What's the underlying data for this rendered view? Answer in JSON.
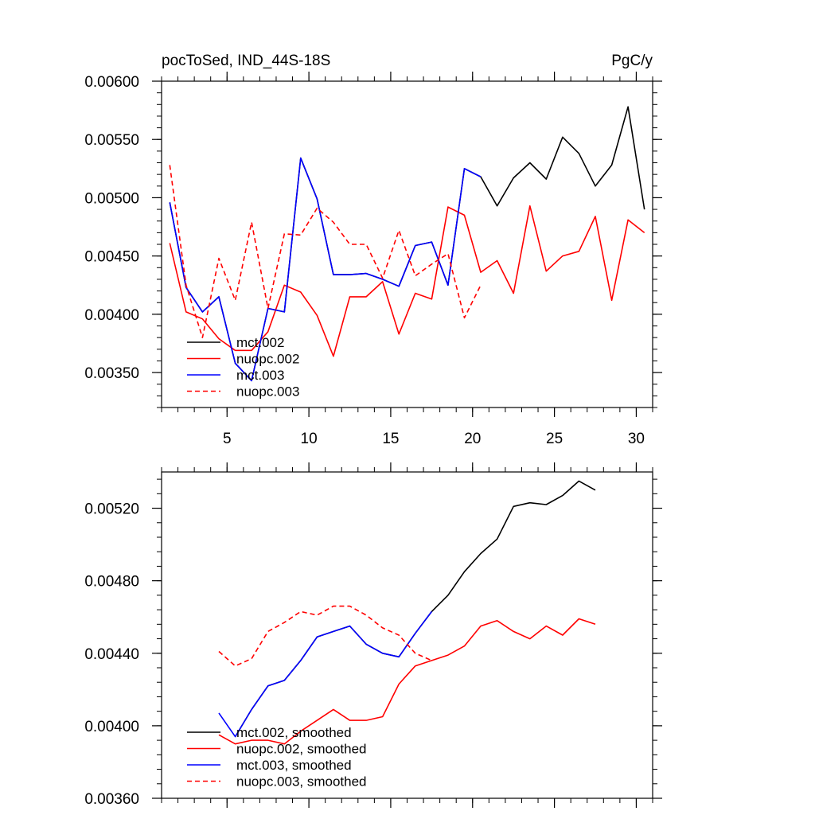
{
  "chart_data": [
    {
      "type": "line",
      "title_left": "pocToSed, IND_44S-18S",
      "title_right": "PgC/y",
      "xlim": [
        1,
        31
      ],
      "ylim": [
        0.0032,
        0.006
      ],
      "xticks": [
        5,
        10,
        15,
        20,
        25,
        30
      ],
      "xtick_labels": [
        "5",
        "10",
        "15",
        "20",
        "25",
        "30"
      ],
      "yticks": [
        0.0035,
        0.004,
        0.0045,
        0.005,
        0.0055,
        0.006
      ],
      "ytick_labels": [
        "0.00350",
        "0.00400",
        "0.00450",
        "0.00500",
        "0.00550",
        "0.00600"
      ],
      "series": [
        {
          "name": "mct.002",
          "color": "#000000",
          "dash": false,
          "x": [
            1.5,
            2.5,
            3.5,
            4.5,
            5.5,
            6.5,
            7.5,
            8.5,
            9.5,
            10.5,
            11.5,
            12.5,
            13.5,
            14.5,
            15.5,
            16.5,
            17.5,
            18.5,
            19.5,
            20.5,
            21.5,
            22.5,
            23.5,
            24.5,
            25.5,
            26.5,
            27.5,
            28.5,
            29.5,
            30.5
          ],
          "y": [
            0.00496,
            0.00423,
            0.00402,
            0.00415,
            0.00358,
            0.00343,
            0.00405,
            0.00402,
            0.00534,
            0.00499,
            0.00434,
            0.00434,
            0.00435,
            0.0043,
            0.00424,
            0.00459,
            0.00462,
            0.00425,
            0.00525,
            0.00518,
            0.00493,
            0.00517,
            0.0053,
            0.00516,
            0.00552,
            0.00538,
            0.0051,
            0.00528,
            0.00578,
            0.0049
          ]
        },
        {
          "name": "nuopc.002",
          "color": "#ff0000",
          "dash": false,
          "x": [
            1.5,
            2.5,
            3.5,
            4.5,
            5.5,
            6.5,
            7.5,
            8.5,
            9.5,
            10.5,
            11.5,
            12.5,
            13.5,
            14.5,
            15.5,
            16.5,
            17.5,
            18.5,
            19.5,
            20.5,
            21.5,
            22.5,
            23.5,
            24.5,
            25.5,
            26.5,
            27.5,
            28.5,
            29.5,
            30.5
          ],
          "y": [
            0.00461,
            0.00402,
            0.00396,
            0.00379,
            0.00369,
            0.00369,
            0.00385,
            0.00425,
            0.00419,
            0.00399,
            0.00364,
            0.00415,
            0.00415,
            0.00428,
            0.00383,
            0.00418,
            0.00413,
            0.00492,
            0.00485,
            0.00436,
            0.00446,
            0.00418,
            0.00493,
            0.00437,
            0.0045,
            0.00454,
            0.00484,
            0.00412,
            0.00481,
            0.0047
          ]
        },
        {
          "name": "mct.003",
          "color": "#0000ff",
          "dash": false,
          "x": [
            1.5,
            2.5,
            3.5,
            4.5,
            5.5,
            6.5,
            7.5,
            8.5,
            9.5,
            10.5,
            11.5,
            12.5,
            13.5,
            14.5,
            15.5,
            16.5,
            17.5,
            18.5,
            19.5,
            20.5
          ],
          "y": [
            0.00496,
            0.00423,
            0.00402,
            0.00415,
            0.00358,
            0.00343,
            0.00405,
            0.00402,
            0.00534,
            0.00499,
            0.00434,
            0.00434,
            0.00435,
            0.0043,
            0.00424,
            0.00459,
            0.00462,
            0.00425,
            0.00525,
            0.00518
          ]
        },
        {
          "name": "nuopc.003",
          "color": "#ff0000",
          "dash": true,
          "x": [
            1.5,
            2.5,
            3.5,
            4.5,
            5.5,
            6.5,
            7.5,
            8.5,
            9.5,
            10.5,
            11.5,
            12.5,
            13.5,
            14.5,
            15.5,
            16.5,
            17.5,
            18.5,
            19.5,
            20.5
          ],
          "y": [
            0.00528,
            0.00425,
            0.0038,
            0.00448,
            0.00412,
            0.00479,
            0.00405,
            0.00469,
            0.00468,
            0.00491,
            0.00479,
            0.0046,
            0.0046,
            0.00431,
            0.00472,
            0.00433,
            0.00443,
            0.00452,
            0.00397,
            0.00425
          ]
        }
      ]
    },
    {
      "type": "line",
      "xlim": [
        1,
        31
      ],
      "ylim": [
        0.0036,
        0.0054
      ],
      "xticks": [
        5,
        10,
        15,
        20,
        25,
        30
      ],
      "yticks": [
        0.0036,
        0.004,
        0.0044,
        0.0048,
        0.0052
      ],
      "ytick_labels": [
        "0.00360",
        "0.00400",
        "0.00440",
        "0.00480",
        "0.00520"
      ],
      "series": [
        {
          "name": "mct.002, smoothed",
          "color": "#000000",
          "dash": false,
          "x": [
            5.5,
            6.5,
            7.5,
            8.5,
            9.5,
            10.5,
            11.5,
            12.5,
            13.5,
            14.5,
            15.5,
            16.5,
            17.5,
            18.5,
            19.5,
            20.5,
            21.5,
            22.5,
            23.5,
            24.5,
            25.5,
            26.5,
            27.5,
            28.5,
            29.5,
            30.5
          ],
          "y": [
            0.00394,
            0.00409,
            0.00422,
            0.00425,
            0.00436,
            0.00449,
            0.00452,
            0.00455,
            0.00445,
            0.0044,
            0.00438,
            0.00451,
            0.00463,
            0.00472,
            0.00485,
            0.00495,
            0.00503,
            0.00521,
            0.00523,
            0.00522,
            0.00527,
            0.00535,
            0.0053,
            null,
            null,
            null
          ]
        },
        {
          "name": "nuopc.002, smoothed",
          "color": "#ff0000",
          "dash": false,
          "x": [
            4.5,
            5.5,
            6.5,
            7.5,
            8.5,
            9.5,
            10.5,
            11.5,
            12.5,
            13.5,
            14.5,
            15.5,
            16.5,
            17.5,
            18.5,
            19.5,
            20.5,
            21.5,
            22.5,
            23.5,
            24.5,
            25.5,
            26.5,
            27.5
          ],
          "y": [
            0.00395,
            0.0039,
            0.00392,
            0.00392,
            0.0039,
            0.00397,
            0.00403,
            0.00409,
            0.00403,
            0.00403,
            0.00405,
            0.00423,
            0.00433,
            0.00436,
            0.00439,
            0.00444,
            0.00455,
            0.00458,
            0.00452,
            0.00448,
            0.00455,
            0.0045,
            0.00459,
            0.00456
          ]
        },
        {
          "name": "mct.003, smoothed",
          "color": "#0000ff",
          "dash": false,
          "x": [
            4.5,
            5.5,
            6.5,
            7.5,
            8.5,
            9.5,
            10.5,
            11.5,
            12.5,
            13.5,
            14.5,
            15.5,
            16.5,
            17.5
          ],
          "y": [
            0.00407,
            0.00394,
            0.00409,
            0.00422,
            0.00425,
            0.00436,
            0.00449,
            0.00452,
            0.00455,
            0.00445,
            0.0044,
            0.00438,
            0.00451,
            0.00463
          ]
        },
        {
          "name": "nuopc.003, smoothed",
          "color": "#ff0000",
          "dash": true,
          "x": [
            4.5,
            5.5,
            6.5,
            7.5,
            8.5,
            9.5,
            10.5,
            11.5,
            12.5,
            13.5,
            14.5,
            15.5,
            16.5,
            17.5
          ],
          "y": [
            0.00441,
            0.00433,
            0.00437,
            0.00452,
            0.00457,
            0.00463,
            0.00461,
            0.00466,
            0.00466,
            0.00461,
            0.00454,
            0.0045,
            0.0044,
            0.00436
          ]
        }
      ]
    }
  ]
}
